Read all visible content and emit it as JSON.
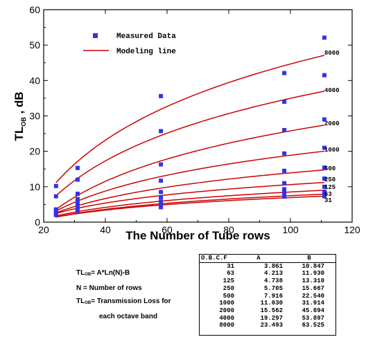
{
  "chart_data": {
    "type": "scatter",
    "xlabel": "The Number of Tube rows",
    "ylabel_main": "TL",
    "ylabel_sub": "OB",
    "ylabel_unit": ", dB",
    "xlim": [
      20,
      120
    ],
    "ylim": [
      0,
      60
    ],
    "xticks": [
      20,
      40,
      60,
      80,
      100,
      120
    ],
    "yticks": [
      0,
      10,
      20,
      30,
      40,
      50,
      60
    ],
    "grid": false,
    "legend_position": "top-left",
    "legend": [
      {
        "label": "Measured Data",
        "marker": "square",
        "color": "#3333e6"
      },
      {
        "label": "Modeling line",
        "marker": "line",
        "color": "#cc0000"
      }
    ],
    "measured_color": "#3333e6",
    "model_color": "#cc0000",
    "x": [
      24,
      31,
      58,
      98,
      111
    ],
    "series": [
      {
        "name": "31",
        "A": 3.861,
        "B": 10.847,
        "measured": [
          2.0,
          3.2,
          4.2,
          7.2,
          7.3
        ]
      },
      {
        "name": "63",
        "A": 4.213,
        "B": 11.93,
        "measured": [
          2.3,
          3.6,
          4.9,
          7.6,
          7.8
        ]
      },
      {
        "name": "125",
        "A": 4.738,
        "B": 13.31,
        "measured": [
          2.5,
          4.0,
          5.8,
          8.2,
          8.6
        ]
      },
      {
        "name": "250",
        "A": 5.705,
        "B": 15.667,
        "measured": [
          2.8,
          4.6,
          7.0,
          9.3,
          10.0
        ]
      },
      {
        "name": "500",
        "A": 7.916,
        "B": 22.54,
        "measured": [
          3.3,
          5.4,
          8.5,
          11.0,
          12.3
        ]
      },
      {
        "name": "1000",
        "A": 11.03,
        "B": 31.914,
        "measured": [
          3.6,
          6.5,
          11.7,
          14.5,
          15.4
        ]
      },
      {
        "name": "2000",
        "A": 15.562,
        "B": 45.894,
        "measured": [
          2.9,
          8.0,
          16.3,
          19.4,
          21.0
        ]
      },
      {
        "name": "4000",
        "A": 19.297,
        "B": 53.897,
        "measured": [
          7.3,
          12.0,
          25.7,
          26.0,
          29.0
        ]
      },
      {
        "name": "8000",
        "A": 23.493,
        "B": 63.525,
        "measured": [
          10.2,
          15.3,
          35.6,
          34.0,
          41.5
        ]
      }
    ],
    "extra_measured_points": [
      [
        98,
        42.1
      ],
      [
        111,
        52.1
      ]
    ],
    "curve_labels": [
      "8000",
      "4000",
      "2000",
      "1000",
      "500",
      "250",
      "125",
      "63",
      "31"
    ]
  },
  "formula": {
    "line1_pre": "TL",
    "line1_sub": "OB",
    "line1_post": "= A*Ln(N)-B",
    "line2": "N = Number of rows",
    "line3_pre": "TL",
    "line3_sub": "OB",
    "line3_post": "= Transmission Loss for",
    "line4": "each octave band"
  },
  "coef_table": {
    "headers": [
      "O.B.C.F",
      "A",
      "B"
    ],
    "rows": [
      [
        "31",
        "3.861",
        "10.847"
      ],
      [
        "63",
        "4.213",
        "11.930"
      ],
      [
        "125",
        "4.738",
        "13.310"
      ],
      [
        "250",
        "5.705",
        "15.667"
      ],
      [
        "500",
        "7.916",
        "22.540"
      ],
      [
        "1000",
        "11.030",
        "31.914"
      ],
      [
        "2000",
        "15.562",
        "45.894"
      ],
      [
        "4000",
        "19.297",
        "53.897"
      ],
      [
        "8000",
        "23.493",
        "63.525"
      ]
    ]
  }
}
